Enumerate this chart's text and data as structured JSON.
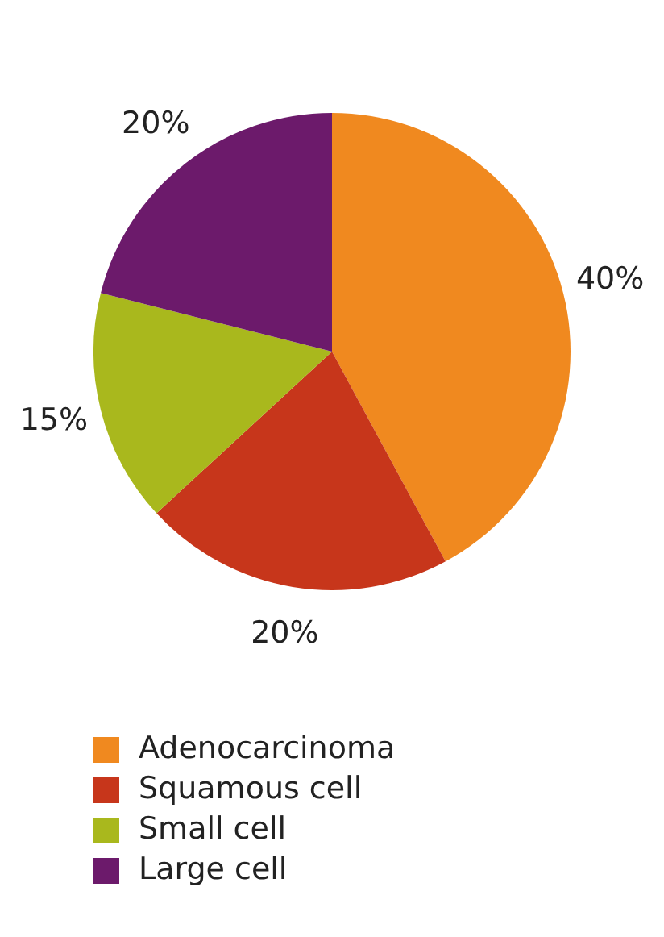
{
  "chart_data": {
    "type": "pie",
    "categories": [
      "Adenocarcinoma",
      "Squamous cell",
      "Small cell",
      "Large cell"
    ],
    "values": [
      40,
      20,
      15,
      20
    ],
    "colors": [
      "#f0891f",
      "#c7361b",
      "#a9b81d",
      "#6c1a6b"
    ],
    "value_labels": [
      "40%",
      "20%",
      "15%",
      "20%"
    ],
    "legend": "bottom"
  }
}
